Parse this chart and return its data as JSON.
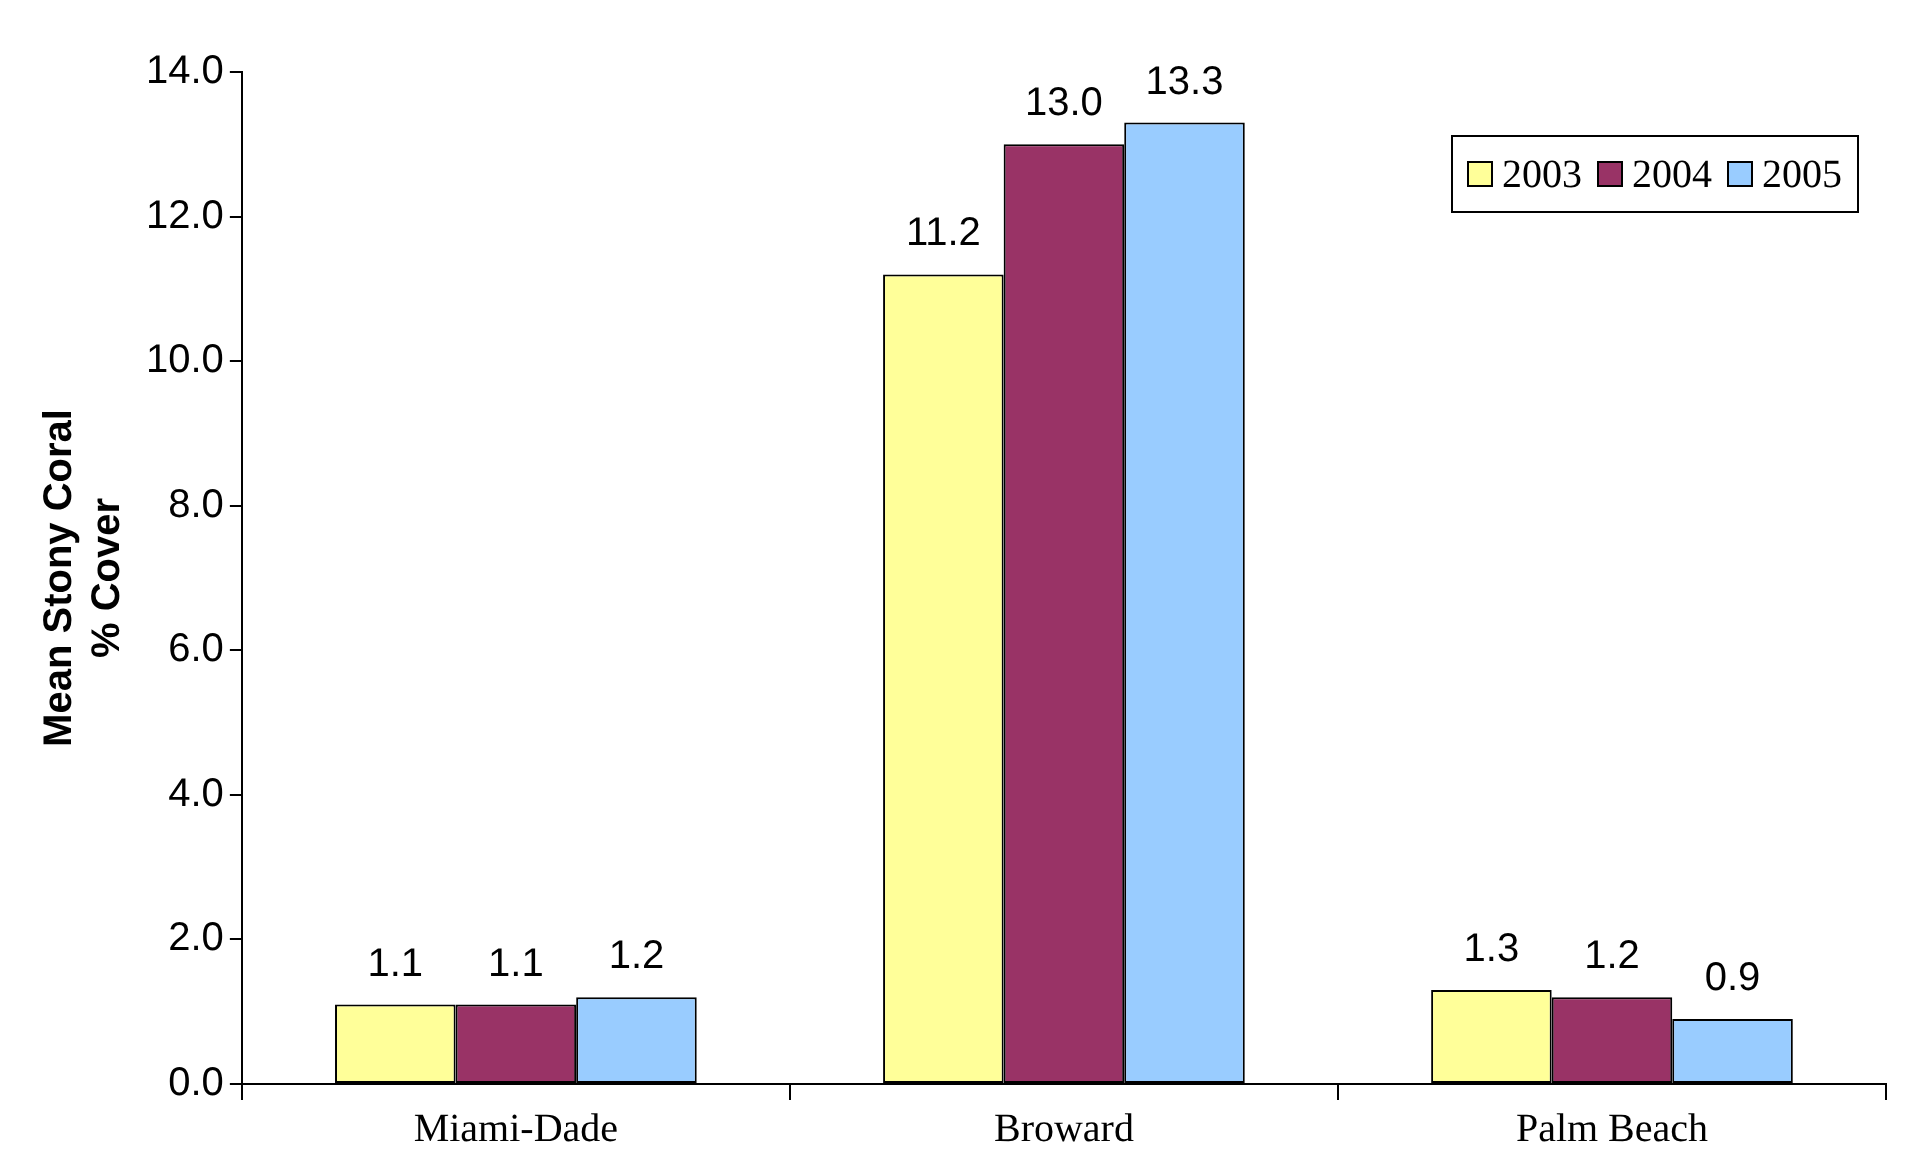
{
  "chart_data": {
    "type": "bar",
    "ylabel": "Mean Stony Coral\n% Cover",
    "categories": [
      "Miami-Dade",
      "Broward",
      "Palm Beach"
    ],
    "series": [
      {
        "name": "2003",
        "color": "#ffff99",
        "values": [
          1.1,
          11.2,
          1.3
        ],
        "value_labels": [
          "1.1",
          "11.2",
          "1.3"
        ]
      },
      {
        "name": "2004",
        "color": "#993366",
        "values": [
          1.1,
          13.0,
          1.2
        ],
        "value_labels": [
          "1.1",
          "13.0",
          "1.2"
        ]
      },
      {
        "name": "2005",
        "color": "#99ccff",
        "values": [
          1.2,
          13.3,
          0.9
        ],
        "value_labels": [
          "1.2",
          "13.3",
          "0.9"
        ]
      }
    ],
    "ylim": [
      0,
      14
    ],
    "yticks": [
      {
        "value": 0,
        "label": "0.0"
      },
      {
        "value": 2,
        "label": "2.0"
      },
      {
        "value": 4,
        "label": "4.0"
      },
      {
        "value": 6,
        "label": "6.0"
      },
      {
        "value": 8,
        "label": "8.0"
      },
      {
        "value": 10,
        "label": "10.0"
      },
      {
        "value": 12,
        "label": "12.0"
      },
      {
        "value": 14,
        "label": "14.0"
      }
    ],
    "grid": false,
    "legend": "top right"
  }
}
